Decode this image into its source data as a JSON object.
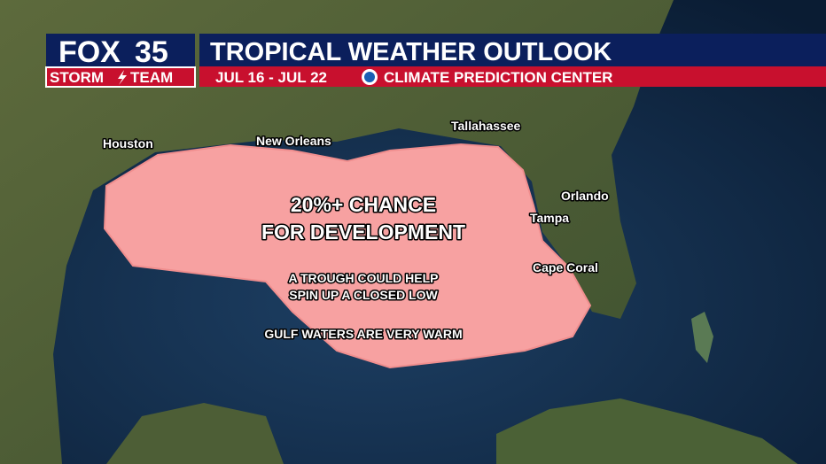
{
  "header": {
    "logo": {
      "brand": "FOX",
      "channel": "35",
      "team_left": "STORM",
      "team_right": "TEAM"
    },
    "title": "TROPICAL WEATHER OUTLOOK",
    "dates": "JUL 16 - JUL 22",
    "source": "CLIMATE PREDICTION CENTER"
  },
  "map": {
    "cities": [
      "Houston",
      "New Orleans",
      "Tallahassee",
      "Orlando",
      "Tampa",
      "Cape Coral"
    ],
    "outlook_area": {
      "headline": [
        "20%+ CHANCE",
        "FOR DEVELOPMENT"
      ],
      "notes": [
        "A TROUGH COULD HELP",
        "SPIN UP A CLOSED LOW",
        "GULF WATERS ARE VERY WARM"
      ]
    }
  }
}
